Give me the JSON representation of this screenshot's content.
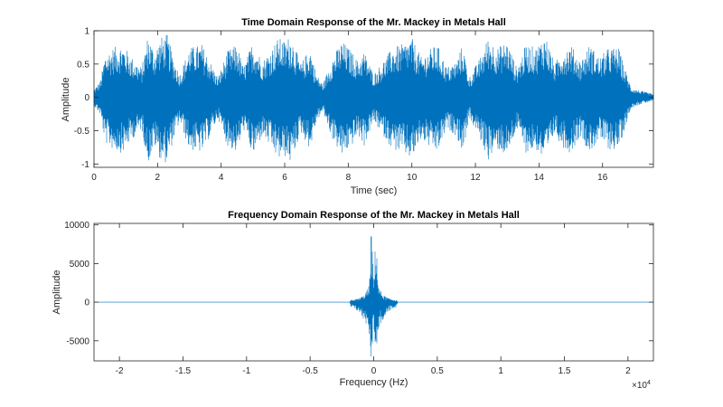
{
  "chart_data": [
    {
      "type": "line",
      "title": "Time Domain Response of the  Mr. Mackey in Metals Hall",
      "xlabel": "Time (sec)",
      "ylabel": "Amplitude",
      "xlim": [
        0,
        17.6
      ],
      "ylim": [
        -1.05,
        1.0
      ],
      "xticks": [
        0,
        2,
        4,
        6,
        8,
        10,
        12,
        14,
        16
      ],
      "xtick_labels": [
        "0",
        "2",
        "4",
        "6",
        "8",
        "10",
        "12",
        "14",
        "16"
      ],
      "yticks": [
        -1,
        -0.5,
        0,
        0.5,
        1
      ],
      "ytick_labels": [
        "-1",
        "-0.5",
        "0",
        "0.5",
        "1"
      ],
      "grid": false,
      "series_color": "#0072bd",
      "envelope": {
        "t": [
          0,
          0.2,
          0.35,
          0.6,
          0.9,
          1.2,
          1.5,
          1.7,
          1.9,
          2.1,
          2.3,
          2.5,
          2.7,
          3.0,
          3.4,
          3.7,
          3.9,
          4.2,
          4.5,
          4.7,
          5.0,
          5.3,
          5.6,
          5.8,
          6.0,
          6.2,
          6.5,
          6.8,
          7.0,
          7.2,
          7.5,
          7.8,
          8.1,
          8.3,
          8.5,
          8.8,
          9.1,
          9.4,
          9.7,
          10.0,
          10.3,
          10.5,
          10.8,
          11.1,
          11.4,
          11.6,
          11.8,
          12.1,
          12.4,
          12.7,
          13.0,
          13.3,
          13.6,
          13.9,
          14.2,
          14.5,
          14.7,
          15.0,
          15.3,
          15.6,
          15.9,
          16.2,
          16.5,
          16.7,
          16.9,
          17.2,
          17.6
        ],
        "amp": [
          0.12,
          0.25,
          0.65,
          0.75,
          0.8,
          0.6,
          0.45,
          0.95,
          0.7,
          0.9,
          0.95,
          0.6,
          0.35,
          0.75,
          0.8,
          0.5,
          0.3,
          0.7,
          0.8,
          0.45,
          0.85,
          0.55,
          0.75,
          0.9,
          0.85,
          0.95,
          0.5,
          0.75,
          0.35,
          0.2,
          0.6,
          0.85,
          0.7,
          0.55,
          0.7,
          0.35,
          0.55,
          0.75,
          0.8,
          0.9,
          0.6,
          0.7,
          0.8,
          0.45,
          0.55,
          0.8,
          0.3,
          0.55,
          0.9,
          0.75,
          0.85,
          0.45,
          0.8,
          0.75,
          0.95,
          0.5,
          0.7,
          0.8,
          0.55,
          0.8,
          0.6,
          0.75,
          0.75,
          0.45,
          0.15,
          0.1,
          0.05
        ]
      }
    },
    {
      "type": "line",
      "title": "Frequency Domain Response of the  Mr. Mackey in Metals Hall",
      "xlabel": "Frequency (Hz)",
      "ylabel": "Amplitude",
      "x_multiplier": "×10",
      "x_exponent": "4",
      "xlim": [
        -2.2,
        2.2
      ],
      "ylim": [
        -7600,
        10200
      ],
      "xticks": [
        -2,
        -1.5,
        -1,
        -0.5,
        0,
        0.5,
        1,
        1.5,
        2
      ],
      "xtick_labels": [
        "-2",
        "-1.5",
        "-1",
        "-0.5",
        "0",
        "0.5",
        "1",
        "1.5",
        "2"
      ],
      "yticks": [
        -5000,
        0,
        5000,
        10000
      ],
      "ytick_labels": [
        "-5000",
        "0",
        "5000",
        "10000"
      ],
      "grid": false,
      "series_color": "#0072bd",
      "envelope": {
        "f": [
          -2.2,
          -0.19,
          -0.18,
          -0.12,
          -0.08,
          -0.04,
          -0.03,
          -0.02,
          0.0,
          0.02,
          0.03,
          0.04,
          0.08,
          0.12,
          0.18,
          0.19,
          2.2
        ],
        "pos": [
          5,
          5,
          300,
          500,
          900,
          1900,
          3900,
          10200,
          2800,
          10200,
          3900,
          1900,
          900,
          500,
          300,
          5,
          5
        ],
        "neg": [
          -5,
          -5,
          -700,
          -1200,
          -2300,
          -3300,
          -5700,
          -7600,
          -3000,
          -7600,
          -5700,
          -3300,
          -2300,
          -1200,
          -700,
          -5,
          -5
        ]
      }
    }
  ]
}
